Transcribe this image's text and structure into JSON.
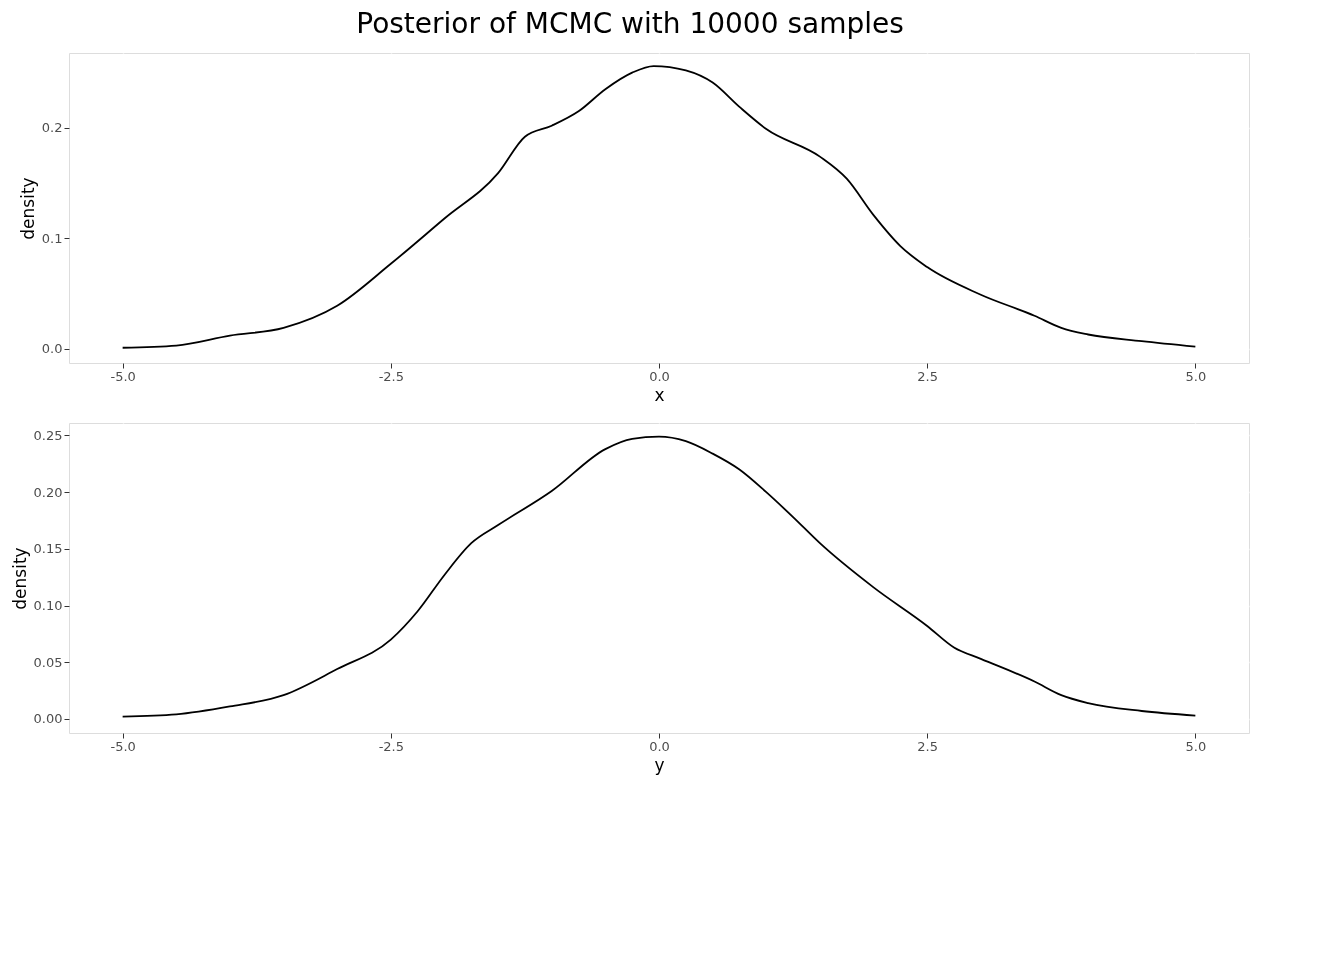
{
  "chart_data": [
    {
      "type": "line",
      "title": "Posterior of MCMC with 10000 samples",
      "xlabel": "x",
      "ylabel": "density",
      "grid": true,
      "x": [
        -5.0,
        -4.5,
        -4.0,
        -3.5,
        -3.0,
        -2.5,
        -2.0,
        -1.5,
        -1.25,
        -1.0,
        -0.75,
        -0.5,
        -0.25,
        -0.05,
        0.25,
        0.5,
        0.75,
        1.0,
        1.5,
        1.75,
        2.0,
        2.25,
        2.5,
        3.0,
        3.5,
        3.75,
        4.0,
        4.5,
        5.0
      ],
      "series": [
        {
          "color": "#000000",
          "values": [
            0.001,
            0.003,
            0.012,
            0.019,
            0.039,
            0.077,
            0.118,
            0.159,
            0.192,
            0.202,
            0.215,
            0.235,
            0.25,
            0.256,
            0.252,
            0.241,
            0.219,
            0.199,
            0.174,
            0.154,
            0.121,
            0.093,
            0.074,
            0.049,
            0.03,
            0.019,
            0.013,
            0.007,
            0.002
          ]
        }
      ],
      "xlim": [
        -5.5,
        5.5
      ],
      "ylim": [
        -0.0128,
        0.2678
      ],
      "xticks": [
        {
          "value": -5,
          "label": "-5.0"
        },
        {
          "value": -2.5,
          "label": "-2.5"
        },
        {
          "value": 0,
          "label": "0.0"
        },
        {
          "value": 2.5,
          "label": "2.5"
        },
        {
          "value": 5,
          "label": "5.0"
        }
      ],
      "yticks": [
        {
          "value": 0,
          "label": "0.0"
        },
        {
          "value": 0.1,
          "label": "0.1"
        },
        {
          "value": 0.2,
          "label": "0.2"
        }
      ]
    },
    {
      "type": "line",
      "xlabel": "y",
      "ylabel": "density",
      "grid": true,
      "x": [
        -5.0,
        -4.5,
        -4.0,
        -3.5,
        -3.0,
        -2.5,
        -2.25,
        -2.0,
        -1.75,
        -1.5,
        -1.0,
        -0.5,
        -0.25,
        0.0,
        0.25,
        0.5,
        0.75,
        1.0,
        1.25,
        1.5,
        2.0,
        2.5,
        2.75,
        3.0,
        3.5,
        3.75,
        4.0,
        4.5,
        5.0
      ],
      "series": [
        {
          "color": "#000000",
          "values": [
            0.002,
            0.004,
            0.011,
            0.021,
            0.044,
            0.07,
            0.095,
            0.127,
            0.155,
            0.171,
            0.201,
            0.238,
            0.247,
            0.249,
            0.245,
            0.234,
            0.22,
            0.2,
            0.178,
            0.155,
            0.116,
            0.082,
            0.063,
            0.053,
            0.033,
            0.021,
            0.014,
            0.007,
            0.003
          ]
        }
      ],
      "xlim": [
        -5.5,
        5.5
      ],
      "ylim": [
        -0.0124,
        0.261
      ],
      "xticks": [
        {
          "value": -5,
          "label": "-5.0"
        },
        {
          "value": -2.5,
          "label": "-2.5"
        },
        {
          "value": 0,
          "label": "0.0"
        },
        {
          "value": 2.5,
          "label": "2.5"
        },
        {
          "value": 5,
          "label": "5.0"
        }
      ],
      "yticks": [
        {
          "value": 0,
          "label": "0.00"
        },
        {
          "value": 0.05,
          "label": "0.05"
        },
        {
          "value": 0.1,
          "label": "0.10"
        },
        {
          "value": 0.15,
          "label": "0.15"
        },
        {
          "value": 0.2,
          "label": "0.20"
        },
        {
          "value": 0.25,
          "label": "0.25"
        }
      ]
    }
  ]
}
